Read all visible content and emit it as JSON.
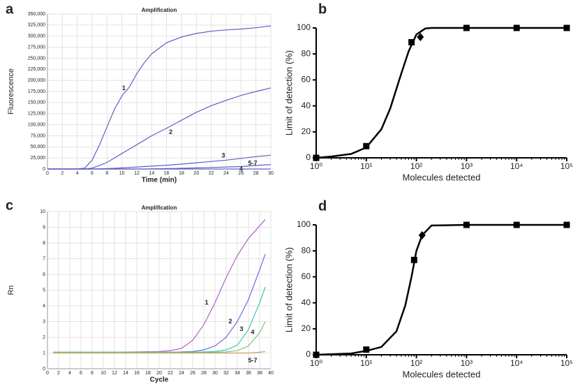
{
  "chart_data": [
    {
      "type": "line",
      "panel": "a",
      "title": "Amplification",
      "x_label": "Time (min)",
      "y_label": "Fluorescence",
      "x": [
        0,
        2,
        4,
        5,
        6,
        7,
        8,
        9,
        10,
        11,
        12,
        13,
        14,
        16,
        18,
        20,
        22,
        24,
        26,
        28,
        30
      ],
      "series": [
        {
          "name": "1",
          "color": "#5f5fc4",
          "values": [
            0,
            0,
            0,
            2000,
            20000,
            55000,
            95000,
            135000,
            165000,
            185000,
            215000,
            240000,
            260000,
            285000,
            298000,
            306000,
            311000,
            314000,
            316000,
            319000,
            323000
          ]
        },
        {
          "name": "2",
          "color": "#5f5fc4",
          "values": [
            0,
            0,
            0,
            0,
            2000,
            8000,
            15000,
            25000,
            35000,
            45000,
            55000,
            65000,
            75000,
            92000,
            110000,
            128000,
            143000,
            155000,
            166000,
            175000,
            183000
          ]
        },
        {
          "name": "3",
          "color": "#5f5fc4",
          "values": [
            0,
            0,
            0,
            0,
            0,
            500,
            1000,
            1500,
            2500,
            3500,
            4500,
            5500,
            6500,
            8500,
            11000,
            14000,
            17000,
            20000,
            24000,
            28000,
            31000
          ]
        },
        {
          "name": "4",
          "color": "#5f5fc4",
          "values": [
            0,
            0,
            0,
            0,
            0,
            0,
            0,
            0,
            0,
            0,
            0,
            0,
            500,
            1000,
            1500,
            2500,
            3500,
            4500,
            5500,
            8000,
            10000
          ]
        },
        {
          "name": "5-7",
          "color": "#5f5fc4",
          "values": [
            0,
            0,
            0,
            0,
            0,
            0,
            0,
            0,
            0,
            0,
            0,
            0,
            0,
            0,
            0,
            0,
            0,
            0,
            0,
            0,
            0
          ]
        }
      ],
      "xlim": [
        0,
        30
      ],
      "xticks": [
        0,
        2,
        4,
        6,
        8,
        10,
        12,
        14,
        16,
        18,
        20,
        22,
        24,
        26,
        28,
        30
      ],
      "ylim": [
        0,
        350000
      ],
      "yticks": [
        0,
        {
          "value": 25000,
          "label": "25,000"
        },
        {
          "value": 50000,
          "label": "50,000"
        },
        {
          "value": 75000,
          "label": "75,000"
        },
        {
          "value": 100000,
          "label": "100,000"
        },
        {
          "value": 125000,
          "label": "125,000"
        },
        {
          "value": 150000,
          "label": "150,000"
        },
        {
          "value": 175000,
          "label": "175,000"
        },
        {
          "value": 200000,
          "label": "200,000"
        },
        {
          "value": 225000,
          "label": "225,000"
        },
        {
          "value": 250000,
          "label": "250,000"
        },
        {
          "value": 275000,
          "label": "275,000"
        },
        {
          "value": 300000,
          "label": "300,000"
        },
        {
          "value": 325000,
          "label": "325,000"
        },
        {
          "value": 350000,
          "label": "350,000"
        }
      ],
      "grid": true
    },
    {
      "type": "scatter",
      "panel": "b",
      "x_label": "Molecules detected",
      "y_label": "Limit of detection (%)",
      "x_scale": "log",
      "x": [
        1,
        10,
        80,
        120,
        1000,
        10000,
        100000
      ],
      "values": [
        0,
        9,
        89,
        93,
        100,
        100,
        100
      ],
      "markers": [
        "square",
        "square",
        "square",
        "diamond",
        "square",
        "square",
        "square"
      ],
      "color": "#000000",
      "fit": {
        "x": [
          1,
          2,
          5,
          10,
          20,
          30,
          50,
          70,
          100,
          150,
          200,
          1000,
          100000
        ],
        "y": [
          0,
          1,
          3,
          8,
          22,
          38,
          65,
          82,
          95,
          99.5,
          100,
          100,
          100
        ]
      },
      "xlim": [
        1,
        100000
      ],
      "xticks": [
        {
          "value": 1,
          "label": "10⁰"
        },
        {
          "value": 10,
          "label": "10¹"
        },
        {
          "value": 100,
          "label": "10²"
        },
        {
          "value": 1000,
          "label": "10³"
        },
        {
          "value": 10000,
          "label": "10⁴"
        },
        {
          "value": 100000,
          "label": "10⁵"
        }
      ],
      "ylim": [
        0,
        100
      ],
      "yticks": [
        0,
        20,
        40,
        60,
        80,
        100
      ],
      "grid": false
    },
    {
      "type": "line",
      "panel": "c",
      "title": "Amplification",
      "x_label": "Cycle",
      "y_label": "Rn",
      "x": [
        1,
        4,
        8,
        12,
        16,
        20,
        22,
        24,
        26,
        28,
        30,
        32,
        34,
        36,
        38,
        39
      ],
      "series": [
        {
          "name": "1",
          "color": "#b060c8",
          "values": [
            1.05,
            1.05,
            1.05,
            1.05,
            1.07,
            1.1,
            1.15,
            1.3,
            1.8,
            2.8,
            4.2,
            5.8,
            7.2,
            8.3,
            9.1,
            9.5
          ]
        },
        {
          "name": "2",
          "color": "#6a6ae0",
          "values": [
            1.05,
            1.05,
            1.05,
            1.05,
            1.05,
            1.05,
            1.05,
            1.07,
            1.1,
            1.2,
            1.45,
            2.0,
            3.0,
            4.4,
            6.3,
            7.3
          ]
        },
        {
          "name": "3",
          "color": "#40c8b0",
          "values": [
            1.05,
            1.05,
            1.05,
            1.05,
            1.05,
            1.05,
            1.05,
            1.05,
            1.05,
            1.07,
            1.1,
            1.2,
            1.5,
            2.5,
            4.2,
            5.2
          ]
        },
        {
          "name": "4",
          "color": "#80c080",
          "values": [
            1.05,
            1.05,
            1.05,
            1.05,
            1.05,
            1.05,
            1.05,
            1.05,
            1.05,
            1.05,
            1.05,
            1.07,
            1.15,
            1.45,
            2.3,
            3.0
          ]
        },
        {
          "name": "5-7",
          "color": "#c8a060",
          "values": [
            1.0,
            1.0,
            1.0,
            1.0,
            1.0,
            1.0,
            1.0,
            1.0,
            1.0,
            1.0,
            1.0,
            1.0,
            1.0,
            1.0,
            1.05,
            1.1
          ]
        }
      ],
      "xlim": [
        0,
        40
      ],
      "xticks": [
        0,
        2,
        4,
        6,
        8,
        10,
        12,
        14,
        16,
        18,
        20,
        22,
        24,
        26,
        28,
        30,
        32,
        34,
        36,
        38,
        40
      ],
      "ylim": [
        0,
        10
      ],
      "yticks": [
        0,
        1,
        2,
        3,
        4,
        5,
        6,
        7,
        8,
        9,
        10
      ],
      "grid": true
    },
    {
      "type": "scatter",
      "panel": "d",
      "x_label": "Molecules detected",
      "y_label": "Limit of detection (%)",
      "x_scale": "log",
      "x": [
        1,
        10,
        90,
        130,
        1000,
        10000,
        100000
      ],
      "values": [
        0,
        4,
        73,
        92,
        100,
        100,
        100
      ],
      "markers": [
        "square",
        "square",
        "square",
        "diamond",
        "square",
        "square",
        "square"
      ],
      "color": "#000000",
      "fit": {
        "x": [
          1,
          5,
          10,
          20,
          40,
          60,
          80,
          100,
          130,
          200,
          1000,
          100000
        ],
        "y": [
          0,
          1,
          3,
          6,
          18,
          38,
          60,
          80,
          92,
          99.5,
          100,
          100
        ]
      },
      "xlim": [
        1,
        100000
      ],
      "xticks": [
        {
          "value": 1,
          "label": "10⁰"
        },
        {
          "value": 10,
          "label": "10¹"
        },
        {
          "value": 100,
          "label": "10²"
        },
        {
          "value": 1000,
          "label": "10³"
        },
        {
          "value": 10000,
          "label": "10⁴"
        },
        {
          "value": 100000,
          "label": "10⁵"
        }
      ],
      "ylim": [
        0,
        100
      ],
      "yticks": [
        0,
        20,
        40,
        60,
        80,
        100
      ],
      "grid": false
    }
  ]
}
